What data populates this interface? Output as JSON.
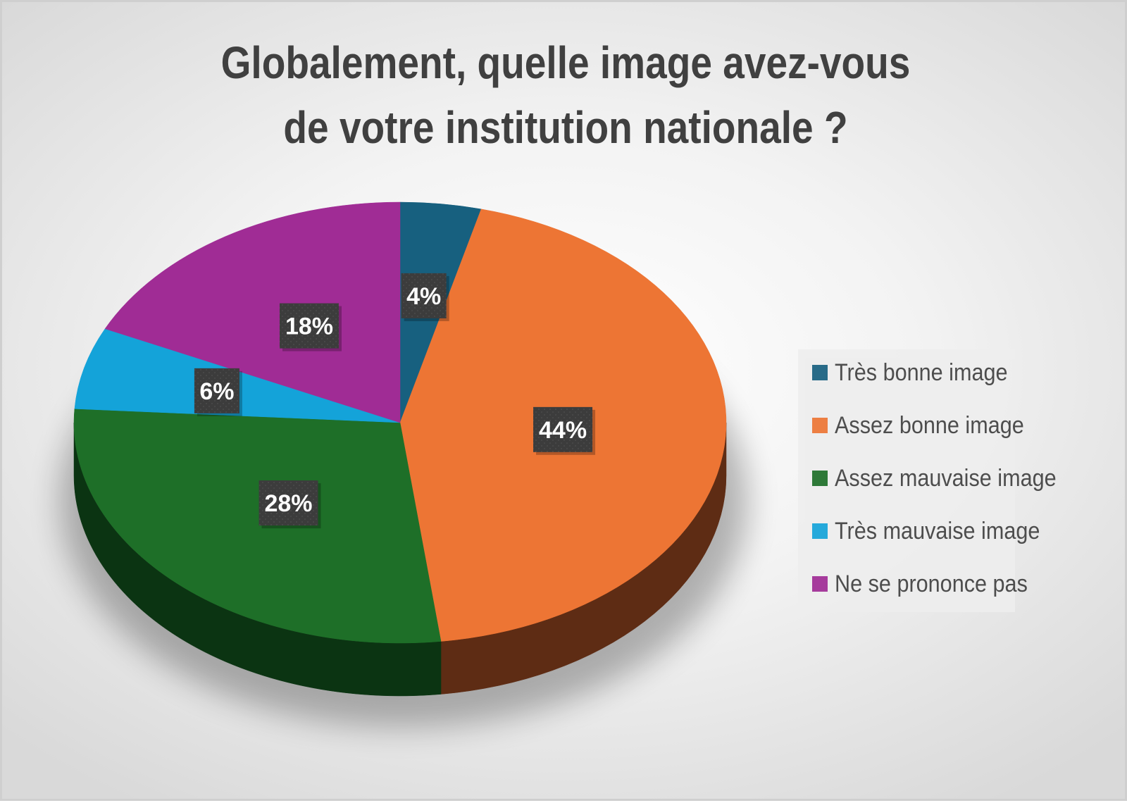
{
  "chart_data": {
    "type": "pie",
    "title": "Globalement, quelle image avez-vous de votre institution nationale ?",
    "title_lines": [
      "Globalement, quelle image avez-vous",
      "de votre institution nationale ?"
    ],
    "categories": [
      "Très bonne image",
      "Assez bonne image",
      "Assez mauvaise image",
      "Très mauvaise image",
      "Ne se prononce pas"
    ],
    "values": [
      4,
      44,
      28,
      6,
      18
    ],
    "data_labels": [
      "4%",
      "44%",
      "28%",
      "6%",
      "18%"
    ],
    "colors": [
      "#17607f",
      "#ed7534",
      "#1e6f28",
      "#14a3d9",
      "#a02c95"
    ],
    "side_colors": [
      "#0b3344",
      "#5e2c14",
      "#0b3412",
      "#0a526d",
      "#501649"
    ],
    "legend_position": "right",
    "style": "3d-pie"
  }
}
